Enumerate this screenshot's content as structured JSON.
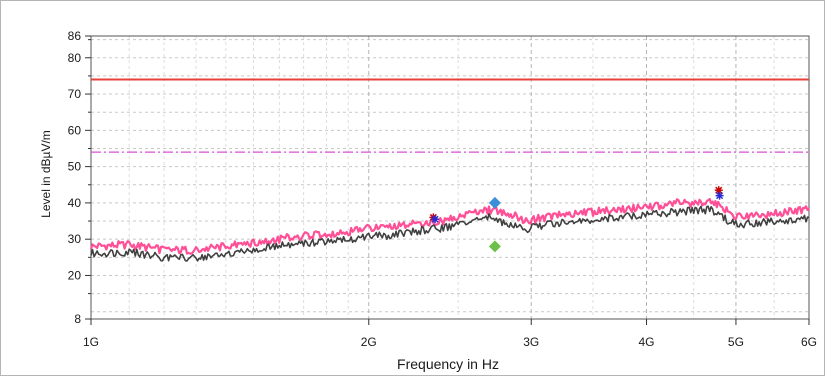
{
  "chart_data": {
    "type": "line",
    "title": "",
    "xlabel": "Frequency in Hz",
    "ylabel": "Level in dBµV/m",
    "x_scale": "log",
    "xlim_hz": [
      1000000000,
      6000000000
    ],
    "ylim": [
      8,
      86
    ],
    "grid": true,
    "x_ticks": [
      {
        "value": 1000000000,
        "label": "1G"
      },
      {
        "value": 2000000000,
        "label": "2G"
      },
      {
        "value": 3000000000,
        "label": "3G"
      },
      {
        "value": 4000000000,
        "label": "4G"
      },
      {
        "value": 5000000000,
        "label": "5G"
      },
      {
        "value": 6000000000,
        "label": "6G"
      }
    ],
    "y_ticks": [
      {
        "value": 8,
        "label": "8"
      },
      {
        "value": 20,
        "label": "20"
      },
      {
        "value": 30,
        "label": "30"
      },
      {
        "value": 40,
        "label": "40"
      },
      {
        "value": 50,
        "label": "50"
      },
      {
        "value": 60,
        "label": "60"
      },
      {
        "value": 70,
        "label": "70"
      },
      {
        "value": 80,
        "label": "80"
      },
      {
        "value": 86,
        "label": "86"
      }
    ],
    "limit_lines": [
      {
        "level": 74,
        "color": "#e8413a",
        "style": "solid"
      },
      {
        "level": 54,
        "color": "#d94fd9",
        "style": "dashdot"
      }
    ],
    "series": [
      {
        "color": "#ff4f96",
        "x_hz": [
          1000000000,
          1100000000,
          1200000000,
          1300000000,
          1400000000,
          1500000000,
          1600000000,
          1700000000,
          1800000000,
          1900000000,
          2000000000,
          2100000000,
          2200000000,
          2300000000,
          2400000000,
          2500000000,
          2600000000,
          2700000000,
          2750000000,
          2850000000,
          2950000000,
          3100000000,
          3300000000,
          3500000000,
          3700000000,
          3900000000,
          4100000000,
          4300000000,
          4500000000,
          4700000000,
          4800000000,
          4900000000,
          5000000000,
          5200000000,
          5500000000,
          5800000000,
          6000000000
        ],
        "values": [
          28,
          28.5,
          27,
          27,
          28,
          29,
          30,
          31,
          31.5,
          32,
          33,
          33,
          34,
          34.5,
          35,
          36,
          37,
          38,
          38,
          37,
          35,
          36,
          37,
          37.5,
          38,
          38.5,
          39,
          40,
          40,
          40,
          39.5,
          37.5,
          36,
          36.5,
          37,
          38,
          38.5
        ]
      },
      {
        "color": "#404040",
        "x_hz": [
          1000000000,
          1100000000,
          1200000000,
          1300000000,
          1400000000,
          1500000000,
          1600000000,
          1700000000,
          1800000000,
          1900000000,
          2000000000,
          2100000000,
          2200000000,
          2300000000,
          2400000000,
          2500000000,
          2600000000,
          2700000000,
          2750000000,
          2850000000,
          2950000000,
          3100000000,
          3300000000,
          3500000000,
          3700000000,
          3900000000,
          4100000000,
          4300000000,
          4500000000,
          4700000000,
          4800000000,
          4900000000,
          5000000000,
          5200000000,
          5500000000,
          5800000000,
          6000000000
        ],
        "values": [
          26,
          26.5,
          25,
          25,
          25.5,
          27,
          28,
          29,
          29.5,
          30,
          31,
          31,
          32,
          32.5,
          33,
          34,
          35,
          36,
          35.5,
          34,
          32.5,
          34,
          35,
          35.5,
          36,
          36.5,
          37,
          37.5,
          38,
          38,
          37,
          35,
          34,
          34.5,
          35,
          35.5,
          36
        ]
      }
    ],
    "markers": [
      {
        "x_hz": 2350000000,
        "y": 36,
        "shape": "star",
        "color": "#cc0000"
      },
      {
        "x_hz": 2360000000,
        "y": 35.5,
        "shape": "star",
        "color": "#2a2ad4"
      },
      {
        "x_hz": 2740000000,
        "y": 40,
        "shape": "diamond",
        "color": "#3a8fd8"
      },
      {
        "x_hz": 2740000000,
        "y": 28,
        "shape": "diamond",
        "color": "#6cc04a"
      },
      {
        "x_hz": 4790000000,
        "y": 43.5,
        "shape": "star",
        "color": "#cc0000"
      },
      {
        "x_hz": 4800000000,
        "y": 42,
        "shape": "star",
        "color": "#2a2ad4"
      }
    ]
  }
}
